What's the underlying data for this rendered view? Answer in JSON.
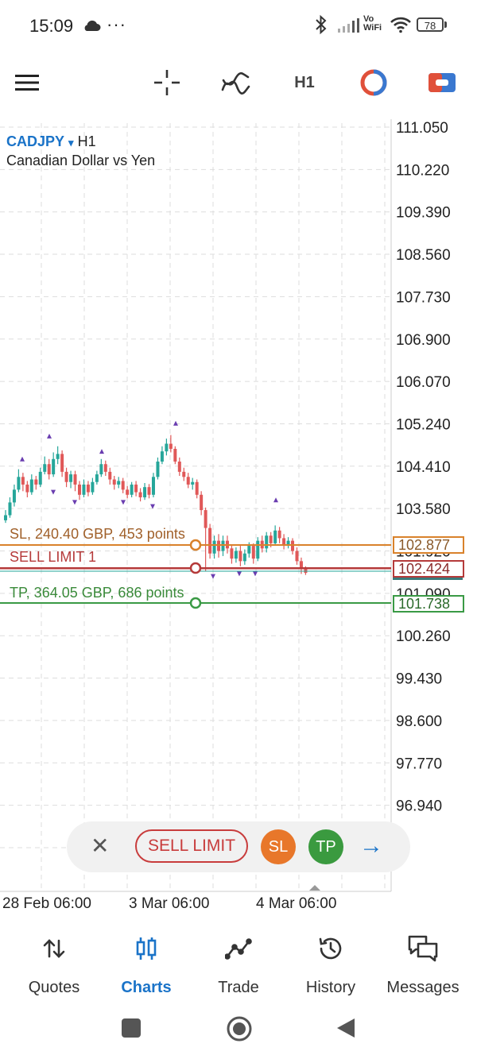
{
  "status_bar": {
    "time": "15:09",
    "more": "···",
    "network_label_top": "Vo",
    "network_label_bottom": "WiFi",
    "battery": "78",
    "icons": [
      "cloud-icon",
      "bluetooth-icon",
      "signal-icon",
      "wifi-icon",
      "battery-icon"
    ]
  },
  "toolbar": {
    "timeframe": "H1",
    "icons": [
      "menu-icon",
      "crosshair-icon",
      "indicators-icon",
      "chart-clock-icon",
      "trade-toggle-icon"
    ]
  },
  "chart": {
    "symbol": "CADJPY",
    "symbol_dropdown": "▾",
    "timeframe": "H1",
    "description": "Canadian Dollar vs Yen",
    "price_axis": [
      "111.050",
      "110.220",
      "109.390",
      "108.560",
      "107.730",
      "106.900",
      "106.070",
      "105.240",
      "104.410",
      "103.580",
      "101.920",
      "101.090",
      "100.260",
      "99.430",
      "98.600",
      "97.770",
      "96.940"
    ],
    "time_axis": [
      "28 Feb 06:00",
      "3 Mar 06:00",
      "4 Mar 06:00"
    ],
    "sl_label": "SL, 240.40 GBP, 453 points",
    "sl_price": "102.877",
    "order_label": "SELL LIMIT 1",
    "order_price": "102.424",
    "tp_label": "TP, 364.05 GBP, 686 points",
    "tp_price": "101.738",
    "colors": {
      "sl": "#d9822b",
      "order": "#b53a3a",
      "tp": "#3a9a45",
      "bull": "#26a69a",
      "bear": "#e05858",
      "signal": "#6a3db0"
    }
  },
  "trade_panel": {
    "close": "✕",
    "sell_limit": "SELL LIMIT",
    "sl": "SL",
    "tp": "TP",
    "arrow": "→"
  },
  "bottom_nav": {
    "items": [
      {
        "label": "Quotes",
        "icon": "quotes-icon"
      },
      {
        "label": "Charts",
        "icon": "charts-icon",
        "active": true
      },
      {
        "label": "Trade",
        "icon": "trade-icon"
      },
      {
        "label": "History",
        "icon": "history-icon"
      },
      {
        "label": "Messages",
        "icon": "messages-icon"
      }
    ]
  }
}
